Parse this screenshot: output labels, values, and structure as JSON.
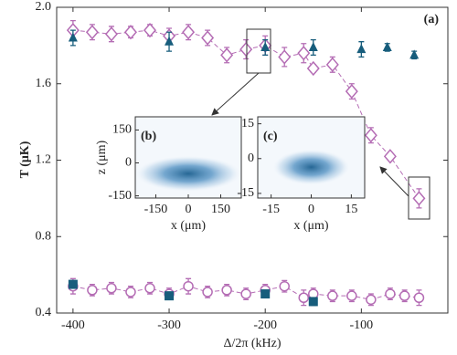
{
  "chart_data": [
    {
      "type": "scatter",
      "x_label": "Δ/2π (kHz)",
      "y_label": "T (μK)",
      "annotation": "(a)",
      "xlim": [
        -417,
        -10
      ],
      "ylim": [
        0.4,
        2.0
      ],
      "xticks": [
        -400,
        -300,
        -200,
        -100
      ],
      "yticks": [
        {
          "value": 2.0,
          "label": "2.0"
        },
        {
          "value": 1.6,
          "label": "1.6"
        },
        {
          "value": 1.2,
          "label": "1.2"
        },
        {
          "value": 0.8,
          "label": "0.8"
        },
        {
          "value": 0.4,
          "label": "0.4"
        }
      ],
      "series": [
        {
          "marker": "diamond",
          "color": "#b46cb4",
          "line": "dashed",
          "x": [
            -400,
            -380,
            -360,
            -340,
            -320,
            -300,
            -280,
            -260,
            -240,
            -220,
            -200,
            -180,
            -160,
            -150,
            -130,
            -110,
            -90,
            -70,
            -40
          ],
          "values": [
            1.88,
            1.87,
            1.86,
            1.87,
            1.88,
            1.85,
            1.87,
            1.84,
            1.75,
            1.78,
            1.8,
            1.74,
            1.76,
            1.68,
            1.7,
            1.56,
            1.33,
            1.22,
            1.0
          ],
          "errors": [
            0.05,
            0.04,
            0.04,
            0.03,
            0.03,
            0.04,
            0.04,
            0.04,
            0.04,
            0.05,
            0.05,
            0.05,
            0.05,
            0.02,
            0.04,
            0.04,
            0.04,
            0.02,
            0.05
          ]
        },
        {
          "marker": "triangle",
          "color": "#175d7c",
          "x": [
            -400,
            -300,
            -200,
            -150,
            -100,
            -73,
            -45
          ],
          "values": [
            1.84,
            1.82,
            1.79,
            1.79,
            1.78,
            1.79,
            1.75
          ],
          "errors": [
            0.04,
            0.05,
            0.04,
            0.04,
            0.04,
            0.02,
            0.02
          ]
        },
        {
          "marker": "circle",
          "color": "#b46cb4",
          "line": "dashed",
          "x": [
            -400,
            -380,
            -360,
            -340,
            -320,
            -300,
            -280,
            -260,
            -240,
            -220,
            -200,
            -180,
            -160,
            -150,
            -130,
            -110,
            -90,
            -70,
            -55,
            -40
          ],
          "values": [
            0.54,
            0.52,
            0.53,
            0.51,
            0.53,
            0.5,
            0.54,
            0.51,
            0.52,
            0.5,
            0.52,
            0.54,
            0.48,
            0.5,
            0.49,
            0.49,
            0.47,
            0.5,
            0.49,
            0.48
          ],
          "errors": [
            0.04,
            0.03,
            0.03,
            0.03,
            0.03,
            0.03,
            0.04,
            0.03,
            0.03,
            0.03,
            0.03,
            0.03,
            0.04,
            0.03,
            0.03,
            0.03,
            0.03,
            0.03,
            0.03,
            0.04
          ]
        },
        {
          "marker": "square",
          "color": "#175d7c",
          "x": [
            -400,
            -300,
            -200,
            -150
          ],
          "values": [
            0.55,
            0.49,
            0.5,
            0.46
          ],
          "errors": [
            0.02,
            0.02,
            0.02,
            0.02
          ]
        }
      ]
    },
    {
      "type": "image",
      "annotation": "(b)",
      "x_label": "x (μm)",
      "y_label": "z (μm)",
      "xlim": [
        -245,
        245
      ],
      "ylim": [
        -160,
        210
      ],
      "xticks": [
        -150,
        0,
        150
      ],
      "yticks": [
        150,
        0,
        -150
      ]
    },
    {
      "type": "image",
      "annotation": "(c)",
      "x_label": "x (μm)",
      "xlim": [
        -20,
        20
      ],
      "ylim": [
        -17,
        18
      ],
      "xticks": [
        -15,
        0,
        15
      ],
      "yticks": [
        15,
        0,
        -15
      ]
    }
  ]
}
